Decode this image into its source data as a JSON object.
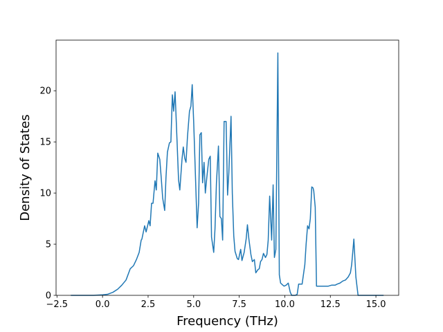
{
  "chart_data": {
    "type": "line",
    "x_label": "Frequency (THz)",
    "y_label": "Density of States",
    "color": "#1f77b4",
    "xlim": [
      -2.55,
      16.25
    ],
    "ylim": [
      0,
      24.95
    ],
    "xticks": [
      {
        "value": -2.5,
        "label": "−2.5"
      },
      {
        "value": 0,
        "label": "0.0"
      },
      {
        "value": 2.5,
        "label": "2.5"
      },
      {
        "value": 5,
        "label": "5.0"
      },
      {
        "value": 7.5,
        "label": "7.5"
      },
      {
        "value": 10,
        "label": "10.0"
      },
      {
        "value": 12.5,
        "label": "12.5"
      },
      {
        "value": 15,
        "label": "15.0"
      }
    ],
    "yticks": [
      0,
      5,
      10,
      15,
      20
    ],
    "x": [
      -1.74,
      -0.49,
      0,
      0.27,
      0.57,
      0.83,
      1.06,
      1.29,
      1.52,
      1.7,
      1.86,
      2.01,
      2.12,
      2.16,
      2.31,
      2.39,
      2.54,
      2.61,
      2.69,
      2.77,
      2.88,
      2.95,
      3.03,
      3.14,
      3.22,
      3.3,
      3.41,
      3.48,
      3.56,
      3.67,
      3.75,
      3.83,
      3.9,
      3.98,
      4.09,
      4.17,
      4.24,
      4.36,
      4.43,
      4.51,
      4.58,
      4.66,
      4.77,
      4.85,
      4.92,
      5.0,
      5.11,
      5.19,
      5.27,
      5.34,
      5.42,
      5.49,
      5.57,
      5.64,
      5.72,
      5.83,
      5.91,
      5.98,
      6.1,
      6.17,
      6.25,
      6.36,
      6.44,
      6.52,
      6.59,
      6.67,
      6.78,
      6.86,
      6.93,
      7.05,
      7.12,
      7.2,
      7.27,
      7.39,
      7.46,
      7.58,
      7.65,
      7.77,
      7.88,
      7.95,
      8.03,
      8.14,
      8.22,
      8.33,
      8.41,
      8.52,
      8.6,
      8.67,
      8.75,
      8.83,
      8.94,
      9.02,
      9.09,
      9.17,
      9.28,
      9.36,
      9.43,
      9.51,
      9.62,
      9.7,
      9.77,
      9.89,
      9.96,
      10.08,
      10.19,
      10.3,
      10.38,
      10.57,
      10.68,
      10.76,
      10.95,
      11.1,
      11.17,
      11.25,
      11.33,
      11.4,
      11.48,
      11.55,
      11.59,
      11.67,
      11.74,
      12.39,
      12.58,
      12.77,
      12.88,
      13.03,
      13.18,
      13.33,
      13.48,
      13.6,
      13.67,
      13.79,
      13.9,
      14.02,
      15.42
    ],
    "values": [
      0,
      0,
      0.05,
      0.1,
      0.3,
      0.6,
      1.0,
      1.5,
      2.6,
      2.9,
      3.5,
      4.2,
      5.4,
      5.5,
      6.8,
      6.2,
      7.3,
      6.8,
      9.0,
      9.0,
      11.2,
      10.3,
      13.9,
      13.3,
      11.5,
      9.5,
      8.3,
      11.5,
      14.0,
      14.9,
      15.0,
      19.6,
      18.0,
      19.9,
      15.0,
      11.3,
      10.3,
      13.3,
      14.5,
      13.4,
      13.0,
      15.5,
      18.0,
      18.5,
      20.6,
      17.0,
      11.0,
      6.6,
      9.0,
      15.7,
      15.9,
      11.0,
      13.0,
      10.0,
      11.5,
      13.3,
      13.6,
      5.7,
      4.2,
      6.5,
      11.0,
      14.6,
      7.7,
      7.5,
      5.4,
      17.0,
      17.0,
      9.8,
      12.0,
      17.5,
      10.0,
      5.8,
      4.3,
      3.6,
      3.5,
      4.5,
      3.4,
      4.2,
      5.5,
      6.9,
      5.5,
      4.0,
      3.3,
      3.5,
      2.2,
      2.5,
      2.6,
      3.3,
      3.5,
      4.1,
      3.7,
      4.0,
      5.4,
      9.7,
      5.4,
      10.8,
      3.7,
      4.5,
      23.7,
      2.0,
      1.2,
      1.0,
      0.9,
      1.0,
      1.2,
      0.3,
      0,
      0,
      0.1,
      1.1,
      1.1,
      3.0,
      5.0,
      6.8,
      6.5,
      7.5,
      10.6,
      10.5,
      10.2,
      8.6,
      0.9,
      0.9,
      1.0,
      1.0,
      1.1,
      1.2,
      1.4,
      1.5,
      1.8,
      2.2,
      3.0,
      5.5,
      1.8,
      0,
      0
    ]
  }
}
